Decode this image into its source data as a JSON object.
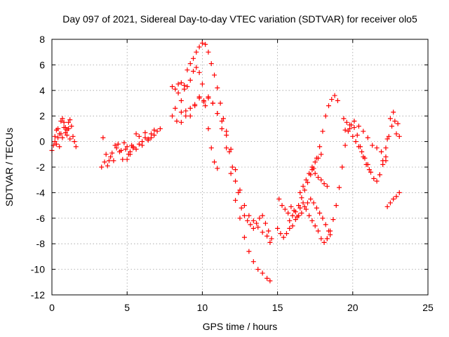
{
  "chart_data": {
    "type": "scatter",
    "title": "Day 097 of 2021, Sidereal Day-to-day VTEC variation (SDTVAR) for receiver olo5",
    "xlabel": "GPS time / hours",
    "ylabel": "SDTVAR / TECUs",
    "xlim": [
      0,
      25
    ],
    "ylim": [
      -12,
      8
    ],
    "xticks": [
      "0",
      "5",
      "10",
      "15",
      "20",
      "25"
    ],
    "yticks": [
      "-12",
      "-10",
      "-8",
      "-6",
      "-4",
      "-2",
      "0",
      "2",
      "4",
      "6",
      "8"
    ],
    "grid": true,
    "marker": "+",
    "color": "#ff0000",
    "series": [
      {
        "x": [
          0.0,
          0.1,
          0.2,
          0.3,
          0.4,
          0.5,
          0.6,
          0.7,
          0.8,
          0.9,
          1.0,
          1.1,
          1.2,
          1.3,
          1.4,
          1.5,
          1.6
        ],
        "y": [
          -0.7,
          -0.3,
          0.4,
          0.9,
          1.0,
          0.6,
          1.6,
          1.8,
          1.5,
          1.1,
          0.9,
          1.5,
          1.7,
          1.2,
          0.4,
          0.0,
          -0.4
        ]
      },
      {
        "x": [
          0.2,
          0.3,
          0.4,
          0.5,
          0.6,
          0.7,
          0.8,
          0.9,
          1.0,
          1.1,
          1.2
        ],
        "y": [
          0.0,
          -0.2,
          0.3,
          -0.4,
          0.6,
          0.3,
          1.1,
          0.7,
          0.5,
          1.0,
          0.2
        ]
      },
      {
        "x": [
          3.3,
          3.5,
          3.7,
          3.9,
          4.1,
          4.3,
          4.5,
          4.7,
          4.9,
          5.1,
          5.3
        ],
        "y": [
          -2.0,
          -1.6,
          -1.9,
          -1.2,
          -1.5,
          -0.5,
          -0.8,
          -1.4,
          -0.6,
          -1.0,
          -0.3
        ]
      },
      {
        "x": [
          3.4,
          3.6,
          3.8,
          4.0,
          4.2,
          4.4,
          4.6,
          4.8,
          5.0
        ],
        "y": [
          0.3,
          -1.0,
          -1.5,
          -0.9,
          -0.3,
          -0.2,
          -0.7,
          -0.1,
          -0.4
        ]
      },
      {
        "x": [
          5.0,
          5.2,
          5.4,
          5.6,
          5.8,
          6.0,
          6.2,
          6.4,
          6.6,
          6.8,
          7.0,
          7.2
        ],
        "y": [
          -1.4,
          -1.0,
          -0.5,
          -0.6,
          -0.2,
          0.0,
          0.3,
          0.2,
          0.6,
          0.5,
          0.8,
          1.0
        ]
      },
      {
        "x": [
          5.2,
          5.4,
          5.6,
          5.8,
          6.0,
          6.2,
          6.4,
          6.6,
          6.8
        ],
        "y": [
          -0.8,
          -0.4,
          0.6,
          0.4,
          -0.3,
          0.7,
          0.1,
          0.3,
          0.9
        ]
      },
      {
        "x": [
          8.0,
          8.2,
          8.4,
          8.6,
          8.8,
          9.0,
          9.2,
          9.4,
          9.6,
          9.8,
          10.0,
          10.2,
          10.4,
          10.6,
          10.8,
          11.0,
          11.2,
          11.4,
          11.6,
          11.8,
          12.0,
          12.2,
          12.4,
          12.6,
          12.8,
          13.0,
          13.2,
          13.4,
          13.6,
          13.8,
          14.0,
          14.2,
          14.4,
          14.6
        ],
        "y": [
          4.3,
          4.1,
          4.5,
          4.6,
          4.4,
          5.6,
          6.1,
          6.5,
          7.0,
          7.4,
          7.7,
          7.6,
          7.0,
          6.1,
          5.2,
          4.2,
          3.0,
          1.8,
          0.5,
          -0.8,
          -2.0,
          -3.1,
          -4.0,
          -5.2,
          -5.8,
          -6.2,
          -6.5,
          -6.8,
          -6.4,
          -6.0,
          -5.8,
          -6.4,
          -7.0,
          -7.6
        ]
      },
      {
        "x": [
          8.2,
          8.4,
          8.6,
          8.8,
          9.0,
          9.2,
          9.4,
          9.6,
          9.8,
          10.0,
          10.2,
          10.4,
          10.6,
          10.8,
          11.0
        ],
        "y": [
          2.6,
          3.8,
          3.2,
          4.1,
          4.3,
          4.8,
          5.5,
          5.8,
          5.4,
          4.5,
          2.8,
          1.0,
          -0.5,
          -1.6,
          -2.1
        ]
      },
      {
        "x": [
          8.0,
          8.3,
          8.6,
          8.9,
          9.2,
          9.5,
          9.8,
          10.1,
          10.4,
          10.7,
          11.0,
          11.3,
          11.6,
          11.9,
          12.2,
          12.5,
          12.8,
          13.1,
          13.4,
          13.7,
          14.0,
          14.3,
          14.5
        ],
        "y": [
          2.0,
          1.6,
          2.3,
          2.0,
          2.6,
          2.9,
          3.4,
          3.1,
          3.4,
          3.0,
          2.2,
          1.0,
          -0.5,
          -2.5,
          -4.6,
          -6.0,
          -7.5,
          -8.6,
          -9.4,
          -10.0,
          -10.3,
          -10.7,
          -10.9
        ]
      },
      {
        "x": [
          8.6,
          8.9,
          9.2,
          9.5,
          9.8,
          10.1,
          10.4,
          10.7,
          11.0,
          11.3,
          11.6,
          11.9,
          12.2,
          12.5,
          12.8,
          13.1,
          13.4,
          13.7,
          14.0,
          14.3,
          14.5
        ],
        "y": [
          1.5,
          2.4,
          2.0,
          2.8,
          3.5,
          3.2,
          3.5,
          3.0,
          2.2,
          1.6,
          0.8,
          -0.6,
          -2.2,
          -3.8,
          -5.0,
          -5.8,
          -6.2,
          -6.7,
          -7.1,
          -7.4,
          -7.9
        ]
      },
      {
        "x": [
          15.1,
          15.3,
          15.5,
          15.7,
          15.9,
          16.1,
          16.3,
          16.5,
          16.7,
          16.9,
          17.1,
          17.3,
          17.5,
          17.7,
          17.9,
          18.1,
          18.3,
          18.5
        ],
        "y": [
          -4.5,
          -5.0,
          -5.3,
          -5.6,
          -5.1,
          -5.4,
          -5.9,
          -5.2,
          -4.8,
          -5.3,
          -5.8,
          -6.2,
          -6.6,
          -7.0,
          -7.6,
          -7.9,
          -7.6,
          -7.3
        ]
      },
      {
        "x": [
          15.0,
          15.2,
          15.4,
          15.6,
          15.8,
          16.0,
          16.2,
          16.4,
          16.6,
          16.8,
          17.0
        ],
        "y": [
          -6.8,
          -7.2,
          -7.5,
          -7.2,
          -6.8,
          -6.6,
          -6.1,
          -5.8,
          -5.6,
          -5.1,
          -4.8
        ]
      },
      {
        "x": [
          15.8,
          16.0,
          16.2,
          16.4,
          16.6,
          16.8,
          17.0,
          17.2,
          17.4,
          17.6,
          17.8,
          18.0,
          18.2,
          18.4,
          18.6,
          18.8,
          19.0
        ],
        "y": [
          -6.2,
          -5.8,
          -5.5,
          -5.0,
          -4.4,
          -3.8,
          -3.2,
          -2.6,
          -2.1,
          -1.3,
          -0.4,
          0.8,
          2.0,
          2.8,
          3.3,
          3.6,
          3.2
        ]
      },
      {
        "x": [
          16.5,
          16.7,
          16.9,
          17.1,
          17.3,
          17.5,
          17.7,
          17.9
        ],
        "y": [
          -4.0,
          -3.5,
          -3.0,
          -2.5,
          -2.0,
          -1.6,
          -1.3,
          -1.0
        ]
      },
      {
        "x": [
          17.2,
          17.4,
          17.6,
          17.8,
          18.0,
          18.2,
          18.4
        ],
        "y": [
          -4.5,
          -4.8,
          -5.2,
          -5.6,
          -6.0,
          -6.5,
          -7.0
        ]
      },
      {
        "x": [
          17.3,
          17.5,
          17.7,
          17.9,
          18.1,
          18.3
        ],
        "y": [
          -2.2,
          -2.5,
          -2.8,
          -3.0,
          -3.3,
          -3.5
        ]
      },
      {
        "x": [
          18.3,
          18.5,
          18.7,
          18.9,
          19.1,
          19.3,
          19.5,
          19.7,
          19.9,
          20.1,
          20.3,
          20.5,
          20.7,
          20.9,
          21.1
        ],
        "y": [
          -7.6,
          -7.0,
          -6.1,
          -5.0,
          -3.6,
          -2.0,
          -0.3,
          0.8,
          1.3,
          1.1,
          0.5,
          -0.4,
          -1.2,
          -1.8,
          -2.2
        ]
      },
      {
        "x": [
          19.4,
          19.6,
          19.8,
          20.0,
          20.2,
          20.4,
          20.6,
          20.8,
          21.0,
          21.2,
          21.4,
          21.6,
          21.8,
          22.0,
          22.2
        ],
        "y": [
          1.8,
          1.5,
          1.0,
          0.4,
          0.0,
          -0.4,
          -0.8,
          -1.3,
          -1.8,
          -2.4,
          -2.9,
          -3.1,
          -2.6,
          -1.8,
          -1.2
        ]
      },
      {
        "x": [
          19.5,
          19.8,
          20.1,
          20.4,
          20.7,
          21.0,
          21.3,
          21.6,
          21.9,
          22.2
        ],
        "y": [
          0.9,
          1.3,
          1.6,
          1.2,
          0.8,
          0.3,
          -0.3,
          -0.5,
          -0.8,
          -1.5
        ]
      },
      {
        "x": [
          21.8,
          22.0,
          22.2,
          22.4,
          22.6,
          22.8,
          23.0
        ],
        "y": [
          -2.6,
          -1.5,
          -0.5,
          0.4,
          1.2,
          1.6,
          1.4
        ]
      },
      {
        "x": [
          22.3,
          22.5,
          22.7,
          22.9,
          23.1
        ],
        "y": [
          0.2,
          1.8,
          2.3,
          0.6,
          0.4
        ]
      },
      {
        "x": [
          22.3,
          22.5,
          22.7,
          22.9,
          23.1
        ],
        "y": [
          -5.1,
          -4.8,
          -4.5,
          -4.3,
          -4.0
        ]
      }
    ]
  }
}
